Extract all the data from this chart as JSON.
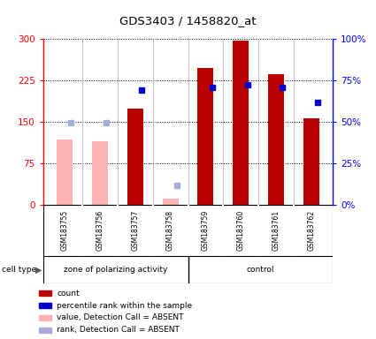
{
  "title": "GDS3403 / 1458820_at",
  "samples": [
    "GSM183755",
    "GSM183756",
    "GSM183757",
    "GSM183758",
    "GSM183759",
    "GSM183760",
    "GSM183761",
    "GSM183762"
  ],
  "count_values": [
    null,
    null,
    175,
    10,
    248,
    297,
    237,
    157
  ],
  "count_absent": [
    118,
    116,
    null,
    12,
    null,
    null,
    null,
    null
  ],
  "rank_values": [
    null,
    null,
    207,
    null,
    212,
    217,
    213,
    185
  ],
  "rank_absent": [
    148,
    148,
    null,
    35,
    null,
    null,
    null,
    null
  ],
  "ylim": [
    0,
    300
  ],
  "yticks": [
    0,
    75,
    150,
    225,
    300
  ],
  "ytick_labels_left": [
    "0",
    "75",
    "150",
    "225",
    "300"
  ],
  "ytick_labels_right": [
    "0%",
    "25%",
    "50%",
    "75%",
    "100%"
  ],
  "group1_label": "zone of polarizing activity",
  "group2_label": "control",
  "n_group1": 4,
  "n_group2": 4,
  "color_count": "#BB0000",
  "color_count_absent": "#FFB3B3",
  "color_rank": "#0000CC",
  "color_rank_absent": "#AAAADD",
  "bg_plot": "#FFFFFF",
  "bg_samples": "#D0D0D0",
  "bg_celltype": "#66EE66",
  "legend_items": [
    {
      "label": "count",
      "color": "#BB0000"
    },
    {
      "label": "percentile rank within the sample",
      "color": "#0000CC"
    },
    {
      "label": "value, Detection Call = ABSENT",
      "color": "#FFB3B3"
    },
    {
      "label": "rank, Detection Call = ABSENT",
      "color": "#AAAADD"
    }
  ]
}
